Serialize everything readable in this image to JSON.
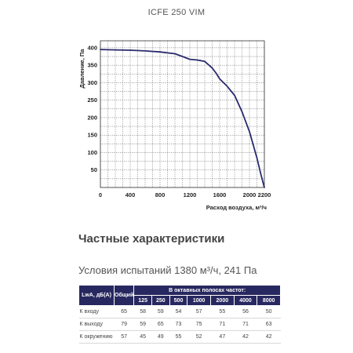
{
  "chart_data": {
    "type": "line",
    "title": "ICFE 250 VIM",
    "xlabel": "Расход воздуха, м³/ч",
    "ylabel": "Давление, Па",
    "xlim": [
      0,
      2200
    ],
    "ylim": [
      0,
      420
    ],
    "xticks": [
      0,
      400,
      800,
      1200,
      1600,
      2000,
      2200
    ],
    "yticks": [
      50,
      100,
      150,
      200,
      250,
      300,
      350,
      400
    ],
    "grid": true,
    "series": [
      {
        "color": "#2a2a6e",
        "x": [
          0,
          200,
          400,
          600,
          800,
          1000,
          1100,
          1200,
          1300,
          1400,
          1500,
          1550,
          1600,
          1700,
          1800,
          1900,
          2000,
          2100,
          2150,
          2200
        ],
        "y": [
          395,
          394,
          393,
          391,
          388,
          383,
          375,
          367,
          365,
          361,
          342,
          328,
          311,
          290,
          264,
          217,
          160,
          85,
          40,
          0
        ]
      }
    ]
  },
  "section_title": "Частные характеристики",
  "conditions": "Условия испытаний 1380 м³/ч, 241 Па",
  "table": {
    "header_row_label": "LwA, дБ(A)",
    "header_total": "Общий",
    "header_octave": "В октавных полосах частот:",
    "bands": [
      "125",
      "250",
      "500",
      "1000",
      "2000",
      "4000",
      "8000"
    ],
    "rows": [
      {
        "label": "К входу",
        "total": "65",
        "values": [
          "58",
          "59",
          "54",
          "57",
          "55",
          "56",
          "50"
        ]
      },
      {
        "label": "К выходу",
        "total": "79",
        "values": [
          "59",
          "65",
          "73",
          "75",
          "71",
          "71",
          "63"
        ]
      },
      {
        "label": "К окружению",
        "total": "57",
        "values": [
          "45",
          "49",
          "55",
          "52",
          "47",
          "42",
          "42"
        ]
      }
    ]
  }
}
